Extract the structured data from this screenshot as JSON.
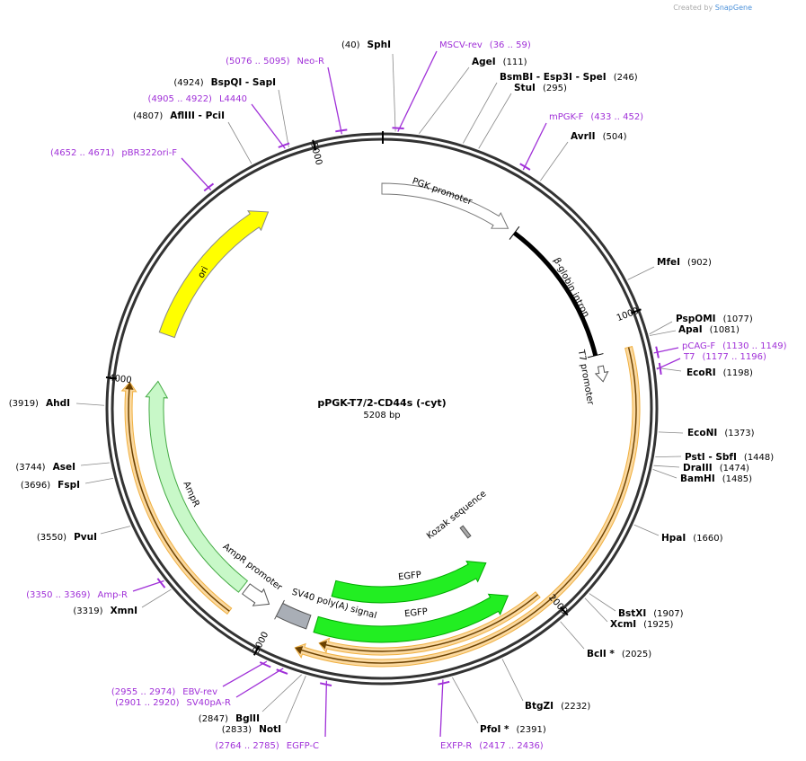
{
  "watermark": {
    "prefix": "Created by",
    "brand": "SnapGene"
  },
  "map": {
    "title": "pPGK-T7/2-CD44s (-cyt)",
    "length": "5208 bp",
    "ticks": [
      "1000",
      "2000",
      "3000",
      "4000",
      "5000"
    ],
    "features": [
      "PGK promoter",
      "β-globin intron",
      "T7 promoter",
      "Kozak sequence",
      "EGFP",
      "EGFP",
      "SV40 poly(A) signal",
      "AmpR promoter",
      "AmpR",
      "ori"
    ],
    "sites": [
      {
        "name": "SphI",
        "pos": "(40)"
      },
      {
        "name": "AgeI",
        "pos": "(111)"
      },
      {
        "name": "BsmBI - Esp3I - SpeI",
        "pos": "(246)"
      },
      {
        "name": "StuI",
        "pos": "(295)"
      },
      {
        "name": "AvrII",
        "pos": "(504)"
      },
      {
        "name": "MfeI",
        "pos": "(902)"
      },
      {
        "name": "PspOMI",
        "pos": "(1077)"
      },
      {
        "name": "ApaI",
        "pos": "(1081)"
      },
      {
        "name": "EcoRI",
        "pos": "(1198)"
      },
      {
        "name": "EcoNI",
        "pos": "(1373)"
      },
      {
        "name": "PstI - SbfI",
        "pos": "(1448)"
      },
      {
        "name": "DraIII",
        "pos": "(1474)"
      },
      {
        "name": "BamHI",
        "pos": "(1485)"
      },
      {
        "name": "HpaI",
        "pos": "(1660)"
      },
      {
        "name": "BstXI",
        "pos": "(1907)"
      },
      {
        "name": "XcmI",
        "pos": "(1925)"
      },
      {
        "name": "BclI *",
        "pos": "(2025)"
      },
      {
        "name": "BtgZI",
        "pos": "(2232)"
      },
      {
        "name": "PfoI *",
        "pos": "(2391)"
      },
      {
        "name": "BglII",
        "pos": "(2847)"
      },
      {
        "name": "NotI",
        "pos": "(2833)"
      },
      {
        "name": "XmnI",
        "pos": "(3319)"
      },
      {
        "name": "PvuI",
        "pos": "(3550)"
      },
      {
        "name": "FspI",
        "pos": "(3696)"
      },
      {
        "name": "AseI",
        "pos": "(3744)"
      },
      {
        "name": "AhdI",
        "pos": "(3919)"
      },
      {
        "name": "AflIII - PciI",
        "pos": "(4807)"
      },
      {
        "name": "BspQI - SapI",
        "pos": "(4924)"
      }
    ],
    "primers": [
      {
        "name": "MSCV-rev",
        "range": "(36 .. 59)"
      },
      {
        "name": "mPGK-F",
        "range": "(433 .. 452)"
      },
      {
        "name": "pCAG-F",
        "range": "(1130 .. 1149)"
      },
      {
        "name": "T7",
        "range": "(1177 .. 1196)"
      },
      {
        "name": "EXFP-R",
        "range": "(2417 .. 2436)"
      },
      {
        "name": "EGFP-C",
        "range": "(2764 .. 2785)"
      },
      {
        "name": "SV40pA-R",
        "range": "(2901 .. 2920)"
      },
      {
        "name": "EBV-rev",
        "range": "(2955 .. 2974)"
      },
      {
        "name": "Amp-R",
        "range": "(3350 .. 3369)"
      },
      {
        "name": "pBR322ori-F",
        "range": "(4652 .. 4671)"
      },
      {
        "name": "L4440",
        "range": "(4905 .. 4922)"
      },
      {
        "name": "Neo-R",
        "range": "(5076 .. 5095)"
      }
    ]
  }
}
